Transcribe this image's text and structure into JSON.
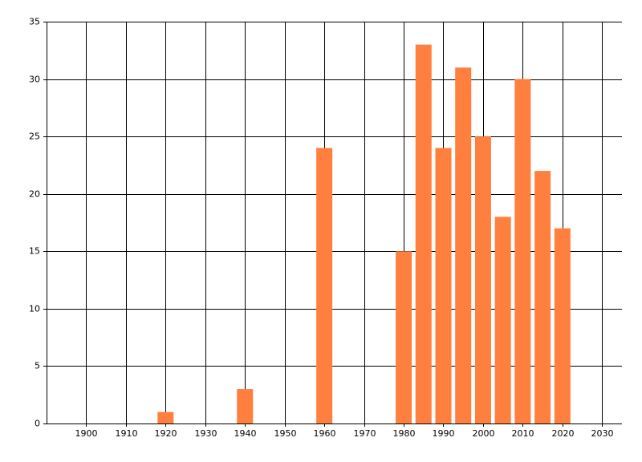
{
  "chart_data": {
    "type": "bar",
    "x": [
      1920,
      1940,
      1960,
      1980,
      1985,
      1990,
      1995,
      2000,
      2005,
      2010,
      2015,
      2020
    ],
    "values": [
      1,
      3,
      24,
      15,
      33,
      24,
      31,
      25,
      18,
      30,
      22,
      17
    ],
    "color": "#ff7f3f",
    "xlim": [
      1890,
      2035
    ],
    "xticks": [
      1900,
      1910,
      1920,
      1930,
      1940,
      1950,
      1960,
      1970,
      1980,
      1990,
      2000,
      2010,
      2020,
      2030
    ],
    "ylim": [
      0,
      35
    ],
    "yticks": [
      0,
      5,
      10,
      15,
      20,
      25,
      30,
      35
    ],
    "grid": true
  }
}
